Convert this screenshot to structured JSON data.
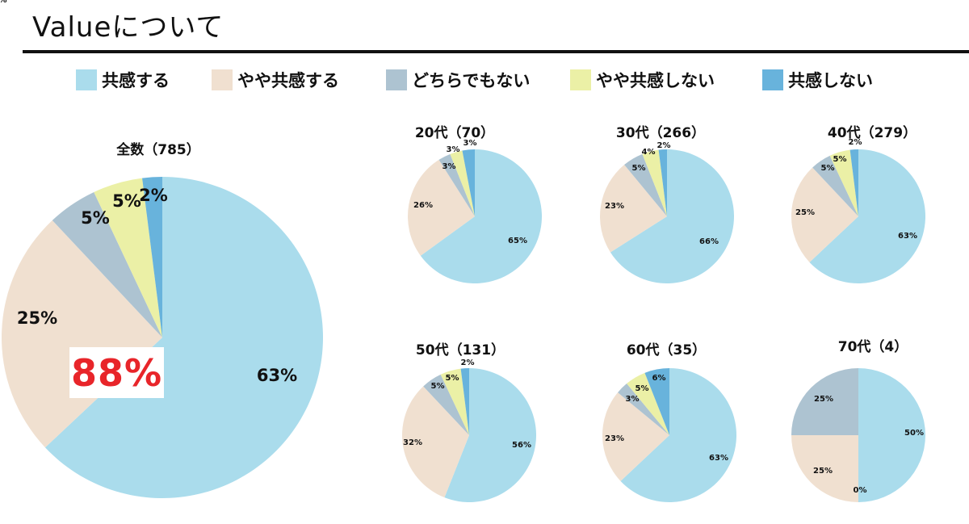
{
  "title": "Valueについて",
  "categories": [
    "共感する",
    "やや共感する",
    "どちらでもない",
    "やや共感しない",
    "共感しない"
  ],
  "colors": {
    "strongly_agree": "#aadcec",
    "somewhat_agree": "#f0e0d0",
    "neutral": "#adc3d1",
    "somewhat_disagree": "#ebf0a6",
    "disagree": "#68b3dc",
    "callout_text": "#e8252a"
  },
  "legend": [
    {
      "label": "共感する",
      "color_key": "strongly_agree"
    },
    {
      "label": "やや共感する",
      "color_key": "somewhat_agree"
    },
    {
      "label": "どちらでもない",
      "color_key": "neutral"
    },
    {
      "label": "やや共感しない",
      "color_key": "somewhat_disagree"
    },
    {
      "label": "共感しない",
      "color_key": "disagree"
    }
  ],
  "callout": "88%",
  "chart_data": [
    {
      "type": "pie",
      "title": "全数（785）",
      "values": [
        63,
        25,
        5,
        5,
        2
      ],
      "labels": [
        "63%",
        "25%",
        "5%",
        "5%",
        "2%"
      ]
    },
    {
      "type": "pie",
      "title": "20代（70）",
      "values": [
        65,
        26,
        3,
        3,
        3
      ],
      "labels": [
        "65%",
        "26%",
        "3%",
        "3%",
        "3%"
      ]
    },
    {
      "type": "pie",
      "title": "30代（266）",
      "values": [
        66,
        23,
        5,
        4,
        2
      ],
      "labels": [
        "66%",
        "23%",
        "5%",
        "4%",
        "2%"
      ]
    },
    {
      "type": "pie",
      "title": "40代（279）",
      "values": [
        63,
        25,
        5,
        5,
        2
      ],
      "labels": [
        "63%",
        "25%",
        "5%",
        "5%",
        "2%"
      ]
    },
    {
      "type": "pie",
      "title": "50代（131）",
      "values": [
        56,
        32,
        5,
        5,
        2
      ],
      "labels": [
        "56%",
        "32%",
        "5%",
        "5%",
        "2%"
      ]
    },
    {
      "type": "pie",
      "title": "60代（35）",
      "values": [
        63,
        23,
        3,
        5,
        6
      ],
      "labels": [
        "63%",
        "23%",
        "3%",
        "5%",
        "6%"
      ]
    },
    {
      "type": "pie",
      "title": "70代（4）",
      "values": [
        50,
        25,
        25,
        0,
        0
      ],
      "labels": [
        "50%",
        "25%",
        "25%",
        "0%",
        ""
      ],
      "extra_labels": [
        "0%"
      ]
    }
  ]
}
